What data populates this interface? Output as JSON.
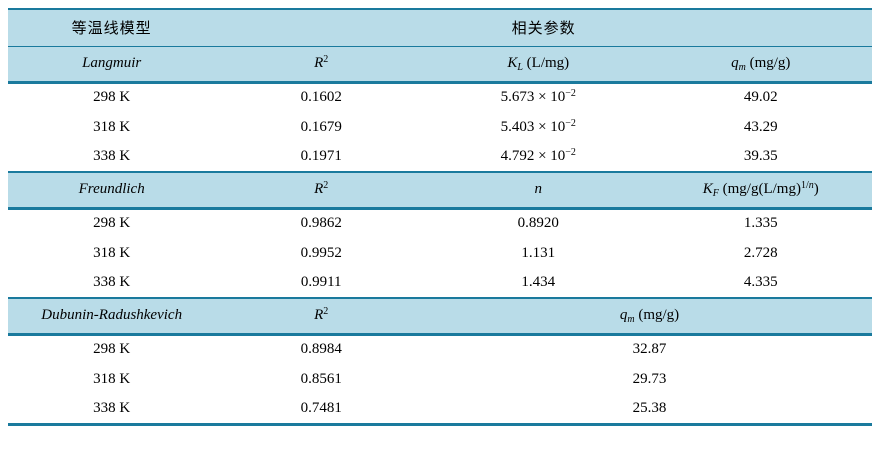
{
  "colors": {
    "border_teal": "#1a7a9d",
    "header_bg": "#b9dce8",
    "text": "#000000",
    "page_bg": "#ffffff"
  },
  "table": {
    "top_header": {
      "model_col": "等温线模型",
      "params_col": "相关参数"
    },
    "sections": [
      {
        "model": "Langmuir",
        "param_headers": [
          {
            "segments": [
              {
                "t": "R",
                "i": 1
              },
              {
                "t": "2",
                "sup": 1
              }
            ]
          },
          {
            "segments": [
              {
                "t": "K",
                "i": 1
              },
              {
                "t": "L",
                "i": 1,
                "sub": 1
              },
              {
                "t": " (L/mg)"
              }
            ]
          },
          {
            "segments": [
              {
                "t": "q",
                "i": 1
              },
              {
                "t": "m",
                "i": 1,
                "sub": 1
              },
              {
                "t": " (mg/g)"
              }
            ]
          }
        ],
        "rows": [
          {
            "temp": "298 K",
            "cells": [
              {
                "segments": [
                  {
                    "t": "0.1602"
                  }
                ]
              },
              {
                "segments": [
                  {
                    "t": "5.673 × 10"
                  },
                  {
                    "t": "−2",
                    "sup": 1
                  }
                ]
              },
              {
                "segments": [
                  {
                    "t": "49.02"
                  }
                ]
              }
            ]
          },
          {
            "temp": "318 K",
            "cells": [
              {
                "segments": [
                  {
                    "t": "0.1679"
                  }
                ]
              },
              {
                "segments": [
                  {
                    "t": "5.403 × 10"
                  },
                  {
                    "t": "−2",
                    "sup": 1
                  }
                ]
              },
              {
                "segments": [
                  {
                    "t": "43.29"
                  }
                ]
              }
            ]
          },
          {
            "temp": "338 K",
            "cells": [
              {
                "segments": [
                  {
                    "t": "0.1971"
                  }
                ]
              },
              {
                "segments": [
                  {
                    "t": "4.792 × 10"
                  },
                  {
                    "t": "−2",
                    "sup": 1
                  }
                ]
              },
              {
                "segments": [
                  {
                    "t": "39.35"
                  }
                ]
              }
            ]
          }
        ]
      },
      {
        "model": "Freundlich",
        "param_headers": [
          {
            "segments": [
              {
                "t": "R",
                "i": 1
              },
              {
                "t": "2",
                "sup": 1
              }
            ]
          },
          {
            "segments": [
              {
                "t": "n",
                "i": 1
              }
            ]
          },
          {
            "segments": [
              {
                "t": "K",
                "i": 1
              },
              {
                "t": "F",
                "i": 1,
                "sub": 1
              },
              {
                "t": " (mg/g(L/mg)"
              },
              {
                "t": "1/",
                "sup": 1
              },
              {
                "t": "n",
                "sup": 1,
                "i": 1
              },
              {
                "t": ")"
              }
            ]
          }
        ],
        "rows": [
          {
            "temp": "298 K",
            "cells": [
              {
                "segments": [
                  {
                    "t": "0.9862"
                  }
                ]
              },
              {
                "segments": [
                  {
                    "t": "0.8920"
                  }
                ]
              },
              {
                "segments": [
                  {
                    "t": "1.335"
                  }
                ]
              }
            ]
          },
          {
            "temp": "318 K",
            "cells": [
              {
                "segments": [
                  {
                    "t": "0.9952"
                  }
                ]
              },
              {
                "segments": [
                  {
                    "t": "1.131"
                  }
                ]
              },
              {
                "segments": [
                  {
                    "t": "2.728"
                  }
                ]
              }
            ]
          },
          {
            "temp": "338 K",
            "cells": [
              {
                "segments": [
                  {
                    "t": "0.9911"
                  }
                ]
              },
              {
                "segments": [
                  {
                    "t": "1.434"
                  }
                ]
              },
              {
                "segments": [
                  {
                    "t": "4.335"
                  }
                ]
              }
            ]
          }
        ]
      },
      {
        "model": "Dubunin-Radushkevich",
        "param_headers": [
          {
            "segments": [
              {
                "t": "R",
                "i": 1
              },
              {
                "t": "2",
                "sup": 1
              }
            ]
          },
          {
            "colspan": 2,
            "segments": [
              {
                "t": "q",
                "i": 1
              },
              {
                "t": "m",
                "i": 1,
                "sub": 1
              },
              {
                "t": " (mg/g)"
              }
            ]
          }
        ],
        "rows": [
          {
            "temp": "298 K",
            "cells": [
              {
                "segments": [
                  {
                    "t": "0.8984"
                  }
                ]
              },
              {
                "colspan": 2,
                "segments": [
                  {
                    "t": "32.87"
                  }
                ]
              }
            ]
          },
          {
            "temp": "318 K",
            "cells": [
              {
                "segments": [
                  {
                    "t": "0.8561"
                  }
                ]
              },
              {
                "colspan": 2,
                "segments": [
                  {
                    "t": "29.73"
                  }
                ]
              }
            ]
          },
          {
            "temp": "338 K",
            "cells": [
              {
                "segments": [
                  {
                    "t": "0.7481"
                  }
                ]
              },
              {
                "colspan": 2,
                "segments": [
                  {
                    "t": "25.38"
                  }
                ]
              }
            ]
          }
        ]
      }
    ]
  }
}
